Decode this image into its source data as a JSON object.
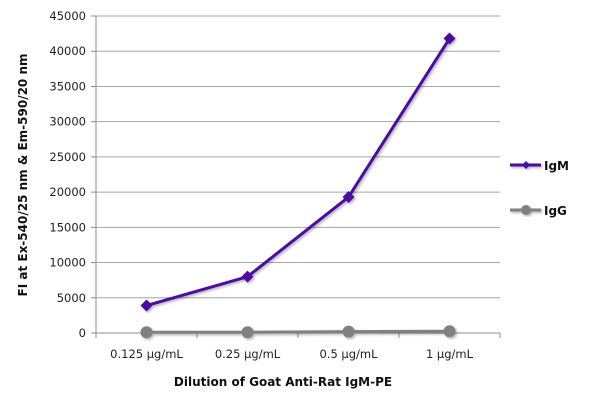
{
  "chart_data": {
    "type": "line",
    "title": "",
    "xlabel": "Dilution of Goat Anti-Rat IgM-PE",
    "ylabel": "FI at Ex-540/25 nm & Em-590/20 nm",
    "categories": [
      "0.125 µg/mL",
      "0.25 µg/mL",
      "0.5 µg/mL",
      "1 µg/mL"
    ],
    "ylim": [
      0,
      45000
    ],
    "yticks": [
      0,
      5000,
      10000,
      15000,
      20000,
      25000,
      30000,
      35000,
      40000,
      45000
    ],
    "grid": true,
    "legend_position": "right",
    "series": [
      {
        "name": "IgM",
        "color": "#4b0fa0",
        "marker": "diamond",
        "values": [
          3900,
          8000,
          19300,
          41800
        ]
      },
      {
        "name": "IgG",
        "color": "#808080",
        "marker": "circle",
        "values": [
          100,
          100,
          200,
          250
        ]
      }
    ]
  }
}
